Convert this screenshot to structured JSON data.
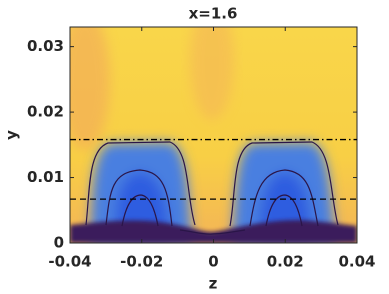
{
  "chart_data": {
    "type": "contour",
    "title": "x=1.6",
    "xlabel": "z",
    "ylabel": "y",
    "xlim": [
      -0.04,
      0.04
    ],
    "ylim": [
      0,
      0.033
    ],
    "xticks": [
      -0.04,
      -0.02,
      0,
      0.02,
      0.04
    ],
    "yticks": [
      0,
      0.01,
      0.02,
      0.03
    ],
    "hlines": [
      {
        "value": 0.0158,
        "style": "dash-dot"
      },
      {
        "value": 0.0067,
        "style": "dashed"
      }
    ]
  }
}
